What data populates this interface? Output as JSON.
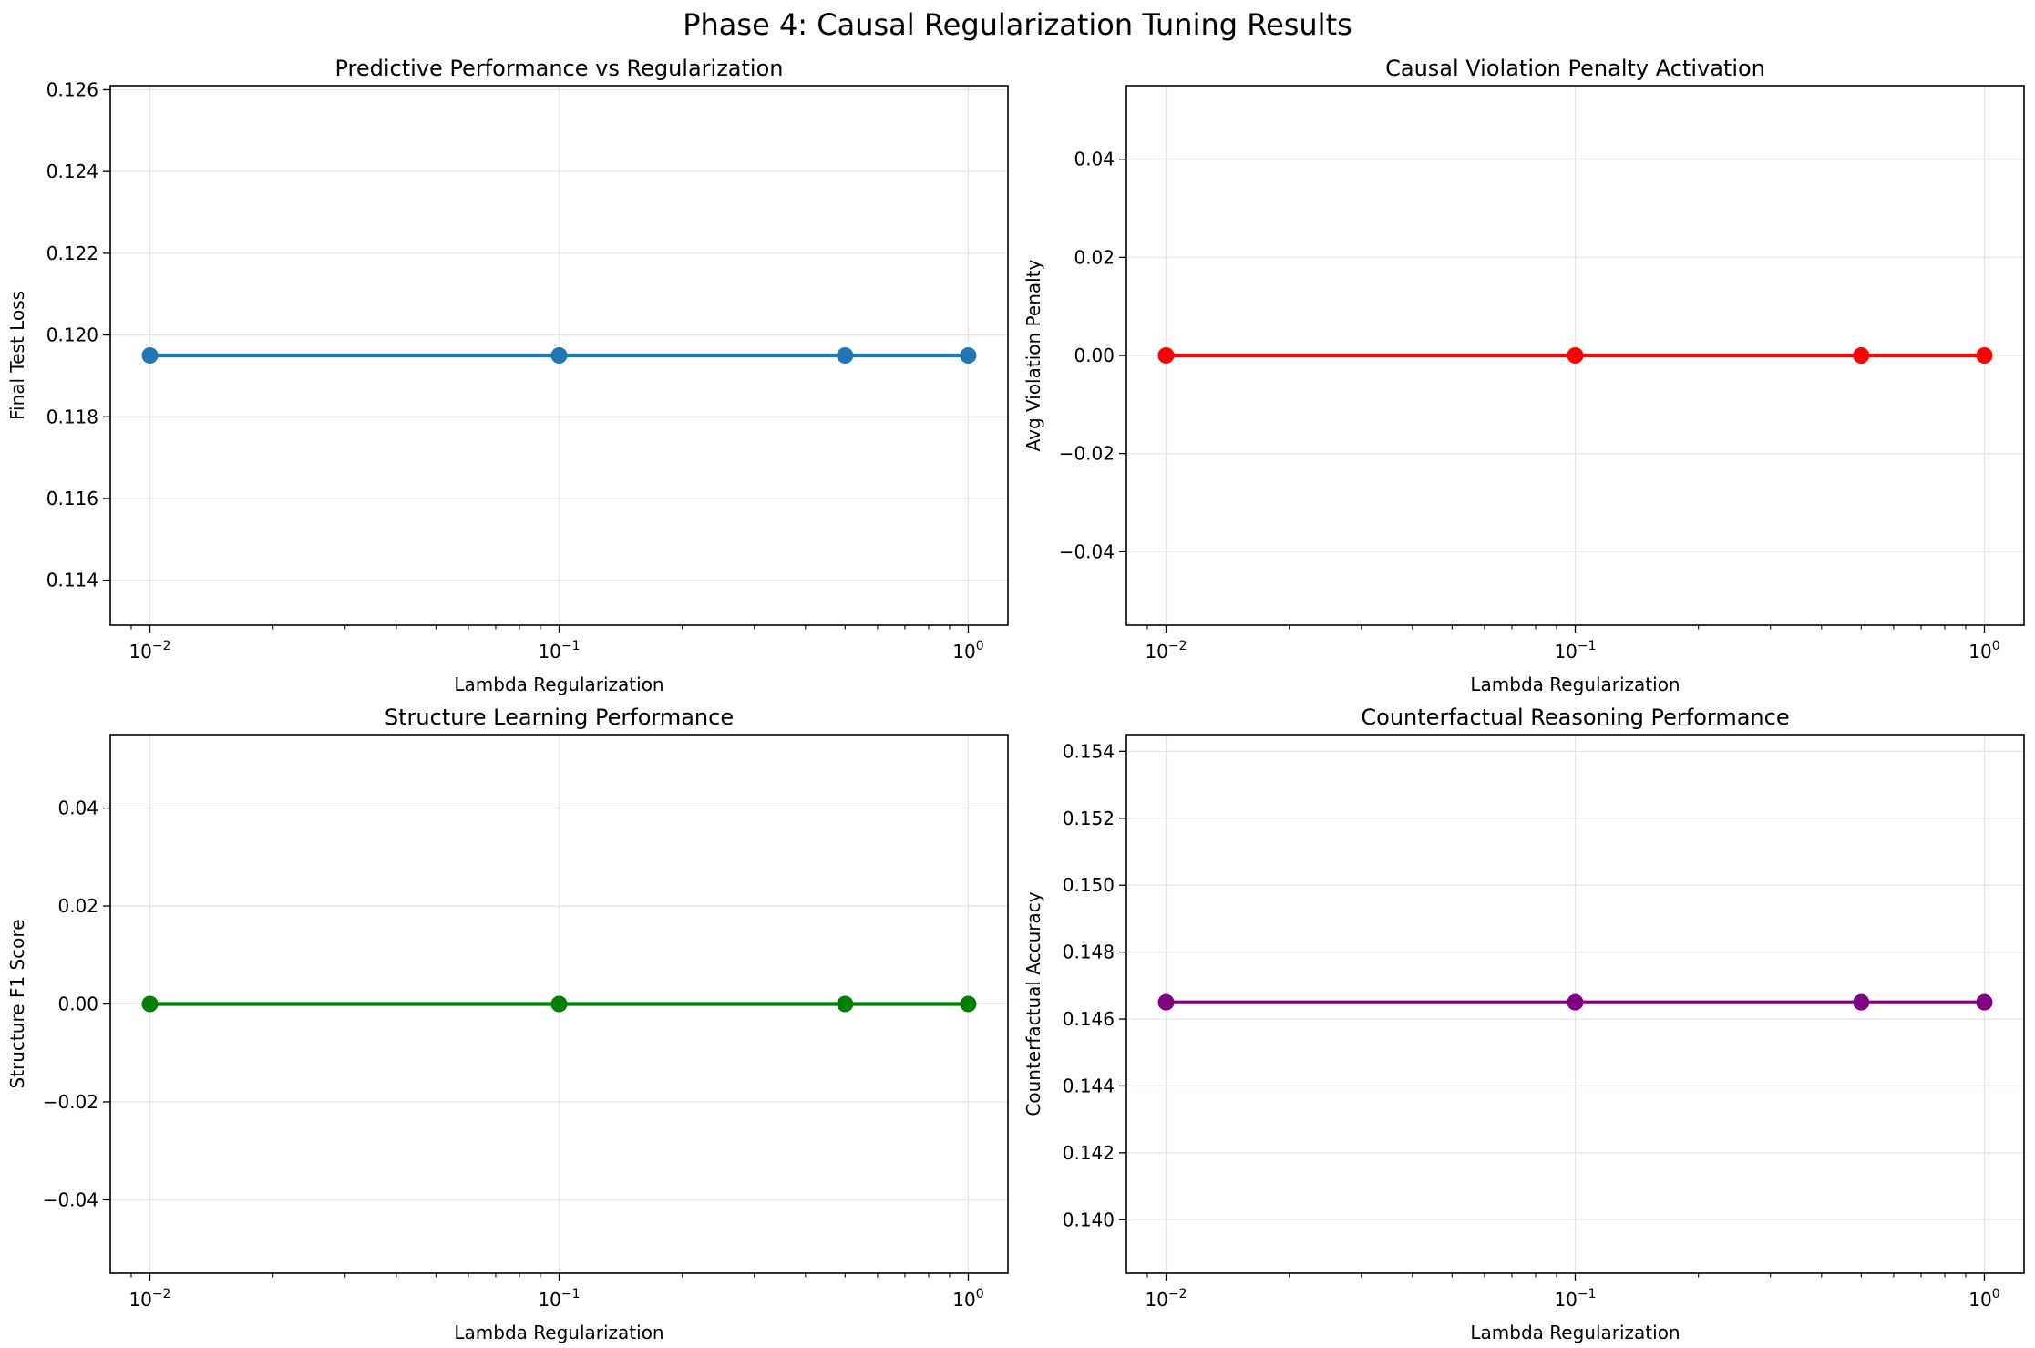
{
  "figure": {
    "suptitle": "Phase 4: Causal Regularization Tuning Results"
  },
  "chart_data": [
    {
      "type": "line",
      "title": "Predictive Performance vs Regularization",
      "xlabel": "Lambda Regularization",
      "ylabel": "Final Test Loss",
      "xscale": "log",
      "xlim": [
        0.008,
        1.25
      ],
      "ylim": [
        0.1129,
        0.1261
      ],
      "xticks": [
        {
          "value": 0.01,
          "base": "10",
          "exp": "−2"
        },
        {
          "value": 0.1,
          "base": "10",
          "exp": "−1"
        },
        {
          "value": 1,
          "base": "10",
          "exp": "0"
        }
      ],
      "yticks": [
        "0.114",
        "0.116",
        "0.118",
        "0.120",
        "0.122",
        "0.124",
        "0.126"
      ],
      "grid": true,
      "series": [
        {
          "x": [
            0.01,
            0.1,
            0.5,
            1.0
          ],
          "y": [
            0.1195,
            0.1195,
            0.1195,
            0.1195
          ],
          "color": "#1f77b4",
          "marker": "circle"
        }
      ]
    },
    {
      "type": "line",
      "title": "Causal Violation Penalty Activation",
      "xlabel": "Lambda Regularization",
      "ylabel": "Avg Violation Penalty",
      "xscale": "log",
      "xlim": [
        0.008,
        1.25
      ],
      "ylim": [
        -0.055,
        0.055
      ],
      "xticks": [
        {
          "value": 0.01,
          "base": "10",
          "exp": "−2"
        },
        {
          "value": 0.1,
          "base": "10",
          "exp": "−1"
        },
        {
          "value": 1,
          "base": "10",
          "exp": "0"
        }
      ],
      "yticks": [
        "−0.04",
        "−0.02",
        "0.00",
        "0.02",
        "0.04"
      ],
      "grid": true,
      "series": [
        {
          "x": [
            0.01,
            0.1,
            0.5,
            1.0
          ],
          "y": [
            0,
            0,
            0,
            0
          ],
          "color": "#ff0000",
          "marker": "circle"
        }
      ]
    },
    {
      "type": "line",
      "title": "Structure Learning Performance",
      "xlabel": "Lambda Regularization",
      "ylabel": "Structure F1 Score",
      "xscale": "log",
      "xlim": [
        0.008,
        1.25
      ],
      "ylim": [
        -0.055,
        0.055
      ],
      "xticks": [
        {
          "value": 0.01,
          "base": "10",
          "exp": "−2"
        },
        {
          "value": 0.1,
          "base": "10",
          "exp": "−1"
        },
        {
          "value": 1,
          "base": "10",
          "exp": "0"
        }
      ],
      "yticks": [
        "−0.04",
        "−0.02",
        "0.00",
        "0.02",
        "0.04"
      ],
      "grid": true,
      "series": [
        {
          "x": [
            0.01,
            0.1,
            0.5,
            1.0
          ],
          "y": [
            0,
            0,
            0,
            0
          ],
          "color": "#008000",
          "marker": "circle"
        }
      ]
    },
    {
      "type": "line",
      "title": "Counterfactual Reasoning Performance",
      "xlabel": "Lambda Regularization",
      "ylabel": "Counterfactual Accuracy",
      "xscale": "log",
      "xlim": [
        0.008,
        1.25
      ],
      "ylim": [
        0.1384,
        0.1545
      ],
      "xticks": [
        {
          "value": 0.01,
          "base": "10",
          "exp": "−2"
        },
        {
          "value": 0.1,
          "base": "10",
          "exp": "−1"
        },
        {
          "value": 1,
          "base": "10",
          "exp": "0"
        }
      ],
      "yticks": [
        "0.140",
        "0.142",
        "0.144",
        "0.146",
        "0.148",
        "0.150",
        "0.152",
        "0.154"
      ],
      "grid": true,
      "series": [
        {
          "x": [
            0.01,
            0.1,
            0.5,
            1.0
          ],
          "y": [
            0.1465,
            0.1465,
            0.1465,
            0.1465
          ],
          "color": "#800080",
          "marker": "circle"
        }
      ]
    }
  ]
}
